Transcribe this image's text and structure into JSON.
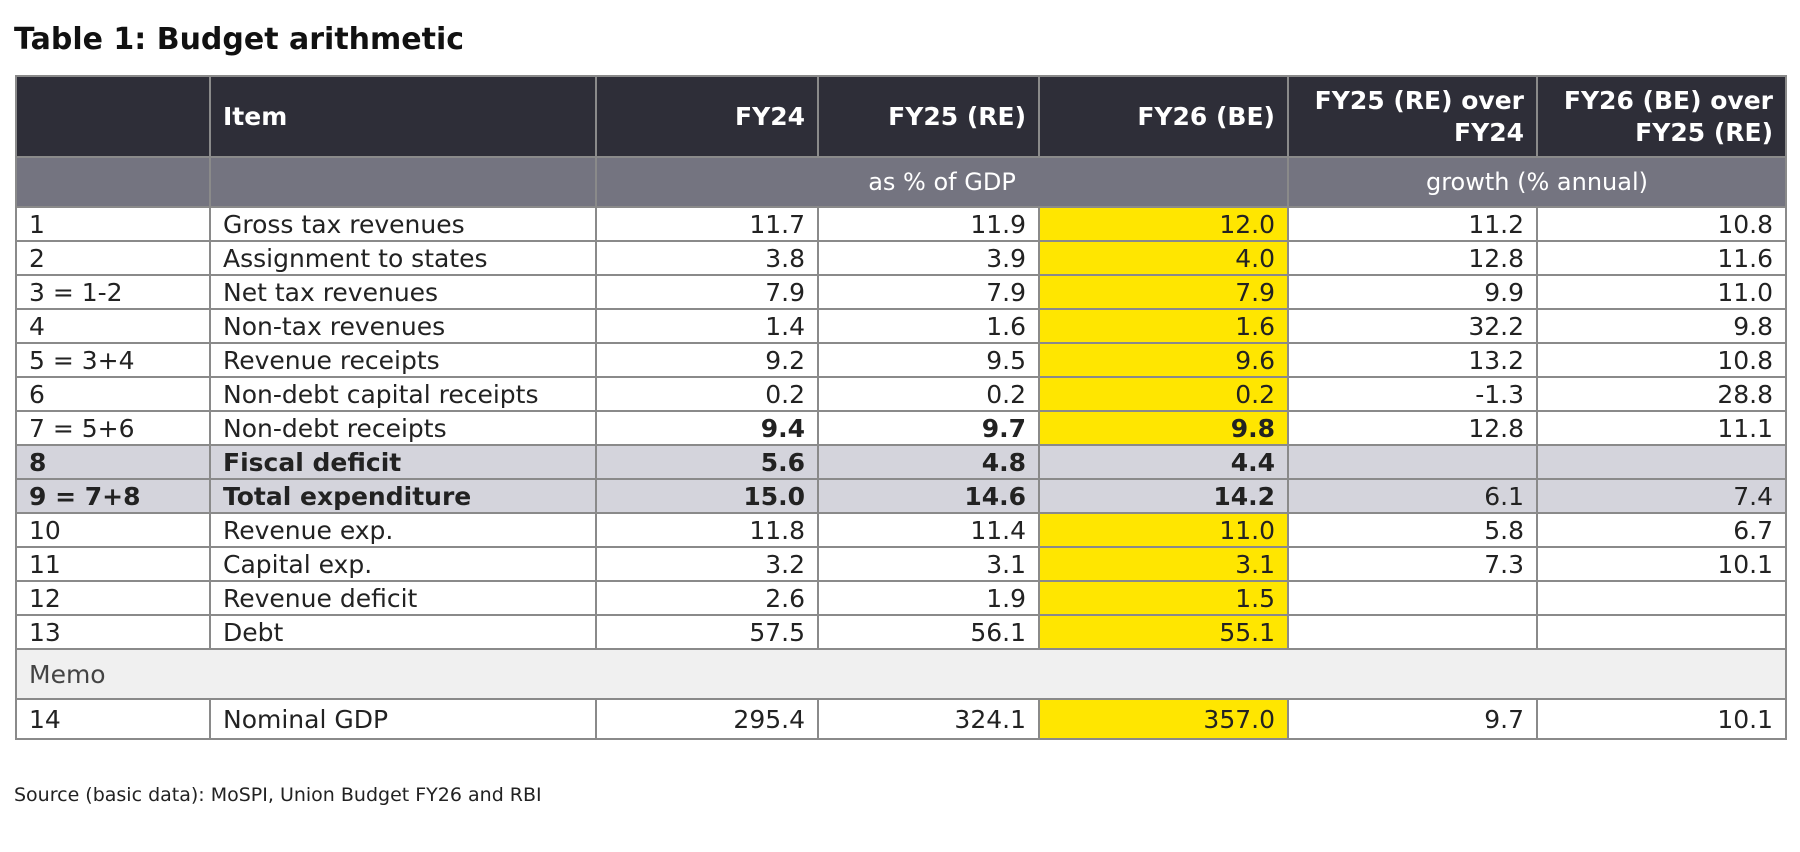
{
  "title": "Table 1:  Budget arithmetic",
  "table": {
    "columns": [
      "Item",
      "FY24",
      "FY25 (RE)",
      "FY26 (BE)",
      "FY25 (RE) over FY24",
      "FY26 (BE) over FY25 (RE)"
    ],
    "subheaders": [
      "as % of GDP",
      "growth (% annual)"
    ],
    "rows": [
      [
        "1",
        "Gross tax revenues",
        "11.7",
        "11.9",
        "12.0",
        "11.2",
        "10.8"
      ],
      [
        "2",
        "Assignment to states",
        "3.8",
        "3.9",
        "4.0",
        "12.8",
        "11.6"
      ],
      [
        "3 = 1-2",
        "Net tax revenues",
        "7.9",
        "7.9",
        "7.9",
        "9.9",
        "11.0"
      ],
      [
        "4",
        "Non-tax revenues",
        "1.4",
        "1.6",
        "1.6",
        "32.2",
        "9.8"
      ],
      [
        "5 = 3+4",
        "Revenue receipts",
        "9.2",
        "9.5",
        "9.6",
        "13.2",
        "10.8"
      ],
      [
        "6",
        "Non-debt capital receipts",
        "0.2",
        "0.2",
        "0.2",
        "-1.3",
        "28.8"
      ],
      [
        "7 = 5+6",
        "Non-debt receipts",
        "9.4",
        "9.7",
        "9.8",
        "12.8",
        "11.1"
      ],
      [
        "8",
        "Fiscal deficit",
        "5.6",
        "4.8",
        "4.4",
        null,
        null
      ],
      [
        "9 = 7+8",
        "Total expenditure",
        "15.0",
        "14.6",
        "14.2",
        "6.1",
        "7.4"
      ],
      [
        "10",
        "Revenue exp.",
        "11.8",
        "11.4",
        "11.0",
        "5.8",
        "6.7"
      ],
      [
        "11",
        "Capital exp.",
        "3.2",
        "3.1",
        "3.1",
        "7.3",
        "10.1"
      ],
      [
        "12",
        "Revenue deficit",
        "2.6",
        "1.9",
        "1.5",
        null,
        null
      ],
      [
        "13",
        "Debt",
        "57.5",
        "56.1",
        "55.1",
        null,
        null
      ]
    ],
    "memo": "Memo",
    "memo_rows": [
      [
        "14",
        "Nominal GDP",
        "295.4",
        "324.1",
        "357.0",
        "9.7",
        "10.1"
      ]
    ]
  },
  "source": "Source (basic data): MoSPI, Union Budget FY26 and RBI"
}
